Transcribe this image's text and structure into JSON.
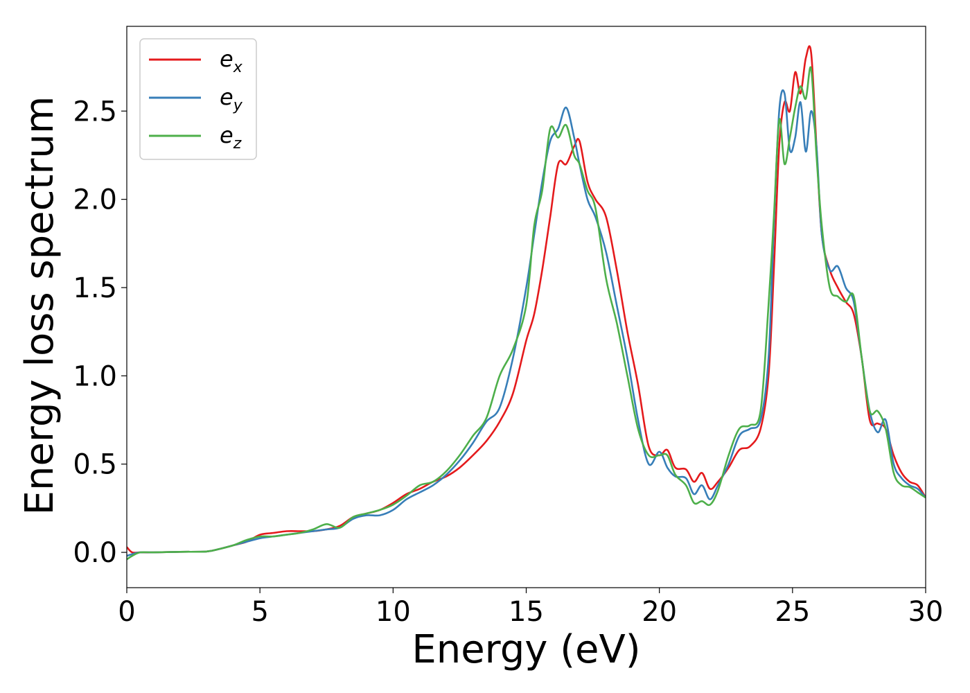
{
  "chart_data": {
    "type": "line",
    "xlabel": "Energy (eV)",
    "ylabel": "Energy loss spectrum",
    "xlim": [
      0,
      30
    ],
    "ylim": [
      -0.2,
      2.98
    ],
    "xticks": [
      0,
      5,
      10,
      15,
      20,
      25,
      30
    ],
    "yticks": [
      0.0,
      0.5,
      1.0,
      1.5,
      2.0,
      2.5
    ],
    "xtick_labels": [
      "0",
      "5",
      "10",
      "15",
      "20",
      "25",
      "30"
    ],
    "ytick_labels": [
      "0.0",
      "0.5",
      "1.0",
      "1.5",
      "2.0",
      "2.5"
    ],
    "grid": false,
    "legend_position": "top-left",
    "x": [
      0,
      0.2,
      0.5,
      1,
      2,
      3,
      3.5,
      4,
      4.5,
      5,
      5.5,
      6,
      6.5,
      7,
      7.5,
      8,
      8.5,
      9,
      9.5,
      10,
      10.5,
      11,
      11.5,
      12,
      12.5,
      13,
      13.5,
      14,
      14.5,
      15,
      15.3,
      15.6,
      15.9,
      16.2,
      16.5,
      16.8,
      17,
      17.3,
      17.6,
      18,
      18.4,
      18.8,
      19.2,
      19.6,
      20,
      20.3,
      20.6,
      21,
      21.3,
      21.6,
      21.9,
      22.2,
      22.6,
      23,
      23.4,
      23.8,
      24.1,
      24.3,
      24.5,
      24.7,
      24.9,
      25.1,
      25.3,
      25.5,
      25.7,
      25.9,
      26.1,
      26.4,
      26.7,
      27,
      27.3,
      27.6,
      27.9,
      28.2,
      28.5,
      28.8,
      29.1,
      29.4,
      29.7,
      30
    ],
    "series": [
      {
        "name": "e_x",
        "label_base": "e",
        "label_sub": "x",
        "color": "#e41a1c",
        "values": [
          0.03,
          0.0,
          0.0,
          0.0,
          0.003,
          0.005,
          0.02,
          0.04,
          0.06,
          0.1,
          0.11,
          0.12,
          0.12,
          0.12,
          0.13,
          0.15,
          0.2,
          0.22,
          0.24,
          0.28,
          0.33,
          0.36,
          0.4,
          0.43,
          0.48,
          0.55,
          0.63,
          0.74,
          0.9,
          1.2,
          1.35,
          1.6,
          1.9,
          2.2,
          2.2,
          2.3,
          2.33,
          2.1,
          2.0,
          1.9,
          1.6,
          1.25,
          0.95,
          0.6,
          0.55,
          0.58,
          0.48,
          0.47,
          0.4,
          0.45,
          0.36,
          0.4,
          0.48,
          0.58,
          0.6,
          0.7,
          1.0,
          1.6,
          2.3,
          2.55,
          2.5,
          2.72,
          2.6,
          2.8,
          2.83,
          2.3,
          1.8,
          1.6,
          1.5,
          1.42,
          1.35,
          1.1,
          0.75,
          0.73,
          0.7,
          0.55,
          0.45,
          0.4,
          0.38,
          0.31
        ]
      },
      {
        "name": "e_y",
        "label_base": "e",
        "label_sub": "y",
        "color": "#377eb8",
        "values": [
          -0.02,
          -0.01,
          0.0,
          0.0,
          0.003,
          0.005,
          0.02,
          0.04,
          0.06,
          0.08,
          0.09,
          0.1,
          0.11,
          0.12,
          0.13,
          0.14,
          0.19,
          0.21,
          0.21,
          0.24,
          0.3,
          0.34,
          0.38,
          0.44,
          0.52,
          0.62,
          0.74,
          0.82,
          1.1,
          1.5,
          1.8,
          2.1,
          2.33,
          2.4,
          2.52,
          2.35,
          2.2,
          2.0,
          1.9,
          1.7,
          1.4,
          1.1,
          0.75,
          0.5,
          0.57,
          0.48,
          0.43,
          0.42,
          0.33,
          0.38,
          0.3,
          0.38,
          0.5,
          0.66,
          0.7,
          0.75,
          1.1,
          1.85,
          2.5,
          2.6,
          2.28,
          2.35,
          2.55,
          2.27,
          2.5,
          2.3,
          1.8,
          1.6,
          1.62,
          1.5,
          1.42,
          1.1,
          0.8,
          0.68,
          0.75,
          0.5,
          0.42,
          0.38,
          0.36,
          0.31
        ]
      },
      {
        "name": "e_z",
        "label_base": "e",
        "label_sub": "z",
        "color": "#4daf4a",
        "values": [
          -0.04,
          -0.02,
          0.0,
          0.0,
          0.003,
          0.005,
          0.02,
          0.04,
          0.07,
          0.09,
          0.09,
          0.1,
          0.11,
          0.13,
          0.16,
          0.14,
          0.2,
          0.22,
          0.24,
          0.27,
          0.32,
          0.38,
          0.4,
          0.46,
          0.55,
          0.66,
          0.76,
          1.0,
          1.15,
          1.4,
          1.85,
          2.05,
          2.4,
          2.35,
          2.42,
          2.25,
          2.2,
          2.05,
          1.95,
          1.55,
          1.3,
          1.0,
          0.7,
          0.55,
          0.55,
          0.55,
          0.44,
          0.38,
          0.28,
          0.29,
          0.27,
          0.35,
          0.55,
          0.7,
          0.72,
          0.8,
          1.4,
          1.9,
          2.45,
          2.2,
          2.35,
          2.52,
          2.64,
          2.57,
          2.74,
          2.25,
          1.85,
          1.5,
          1.45,
          1.42,
          1.45,
          1.1,
          0.8,
          0.8,
          0.7,
          0.45,
          0.38,
          0.37,
          0.34,
          0.31
        ]
      }
    ]
  }
}
